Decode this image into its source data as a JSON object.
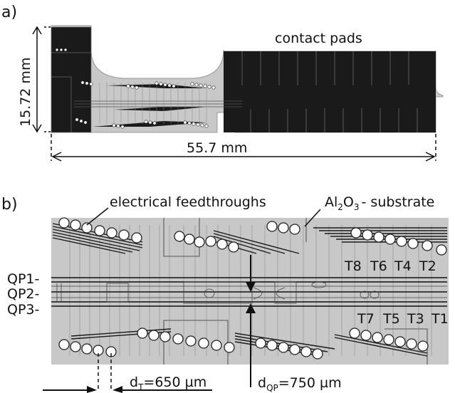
{
  "panel_a": {
    "label": "a)",
    "height_dim": "15.72 mm",
    "width_dim": "55.7 mm",
    "contact_pads": "contact pads"
  },
  "panel_b": {
    "label": "b)",
    "electrical_feedthroughs": "electrical feedthroughs",
    "substrate_label": {
      "al": "Al",
      "sub2": "2",
      "o": "O",
      "sub3": "3",
      "rest": "- substrate"
    },
    "qp_labels": [
      "QP1-",
      "QP2-",
      "QP3-"
    ],
    "top_traps": [
      "T8",
      "T6",
      "T4",
      "T2"
    ],
    "bottom_traps": [
      "T7",
      "T5",
      "T3",
      "T1"
    ],
    "dim_t": {
      "d": "d",
      "sub": "T",
      "value": "=650 µm"
    },
    "dim_qp": {
      "d": "d",
      "sub": "QP",
      "value": "=750 µm"
    }
  },
  "colors": {
    "substrate": "#c8c8c8",
    "metal": "#1a1a1a",
    "trace": "#8a8a8a",
    "background": "#ffffff"
  }
}
